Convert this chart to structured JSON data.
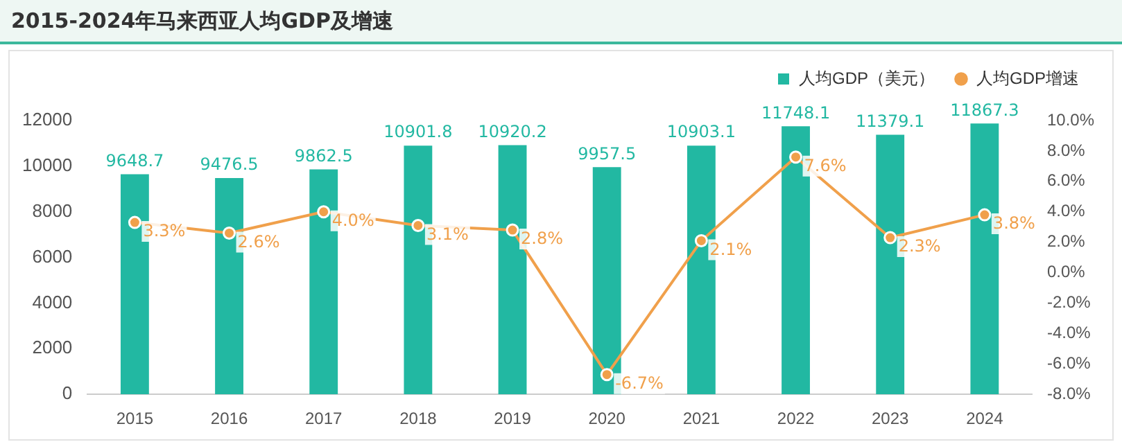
{
  "chart_data": {
    "type": "bar",
    "title": "2015-2024年马来西亚人均GDP及增速",
    "categories": [
      "2015",
      "2016",
      "2017",
      "2018",
      "2019",
      "2020",
      "2021",
      "2022",
      "2023",
      "2024"
    ],
    "series": [
      {
        "name": "人均GDP（美元）",
        "color": "#22b8a2",
        "values": [
          9648.7,
          9476.5,
          9862.5,
          10901.8,
          10920.2,
          9957.5,
          10903.1,
          11748.1,
          11379.1,
          11867.3
        ],
        "value_labels": [
          "9648.7",
          "9476.5",
          "9862.5",
          "10901.8",
          "10920.2",
          "9957.5",
          "10903.1",
          "11748.1",
          "11379.1",
          "11867.3"
        ]
      },
      {
        "name": "人均GDP增速",
        "type": "line",
        "axis": "y2",
        "color": "#f0a04b",
        "values": [
          3.3,
          2.6,
          4.0,
          3.1,
          2.8,
          -6.7,
          2.1,
          7.6,
          2.3,
          3.8
        ],
        "value_labels": [
          "3.3%",
          "2.6%",
          "4.0%",
          "3.1%",
          "2.8%",
          "-6.7%",
          "2.1%",
          "7.6%",
          "2.3%",
          "3.8%"
        ]
      }
    ],
    "ylim": [
      0,
      12000
    ],
    "yticks": [
      0,
      2000,
      4000,
      6000,
      8000,
      10000,
      12000
    ],
    "y2lim": [
      -8,
      10
    ],
    "y2ticks": [
      {
        "value": -8,
        "label": "-8.0%"
      },
      {
        "value": -6,
        "label": "-6.0%"
      },
      {
        "value": -4,
        "label": "-4.0%"
      },
      {
        "value": -2,
        "label": "-2.0%"
      },
      {
        "value": 0,
        "label": "0.0%"
      },
      {
        "value": 2,
        "label": "2.0%"
      },
      {
        "value": 4,
        "label": "4.0%"
      },
      {
        "value": 6,
        "label": "6.0%"
      },
      {
        "value": 8,
        "label": "8.0%"
      },
      {
        "value": 10,
        "label": "10.0%"
      }
    ],
    "legend": "top right",
    "marker": "circle",
    "line_style": "solid",
    "grid": false
  }
}
